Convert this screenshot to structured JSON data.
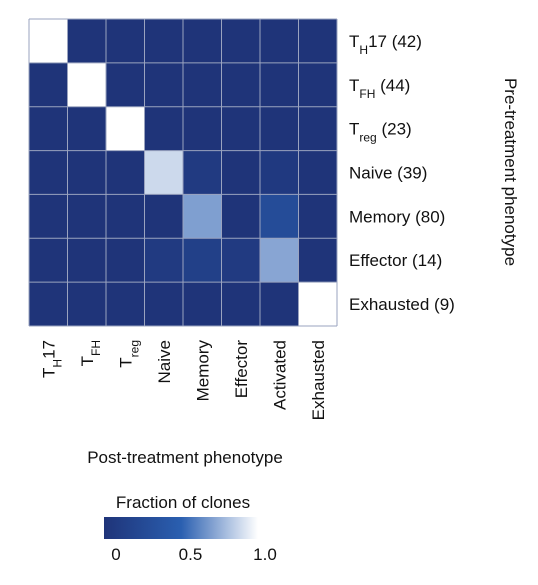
{
  "chart_data": {
    "type": "heatmap",
    "title": "",
    "xlabel": "Post-treatment phenotype",
    "ylabel": "Pre-treatment phenotype",
    "x_categories": [
      {
        "main": "T",
        "sub": "H",
        "suffix": "17"
      },
      {
        "main": "T",
        "sub": "FH",
        "suffix": ""
      },
      {
        "main": "T",
        "sub": "reg",
        "suffix": ""
      },
      {
        "main": "Naive",
        "sub": "",
        "suffix": ""
      },
      {
        "main": "Memory",
        "sub": "",
        "suffix": ""
      },
      {
        "main": "Effector",
        "sub": "",
        "suffix": ""
      },
      {
        "main": "Activated",
        "sub": "",
        "suffix": ""
      },
      {
        "main": "Exhausted",
        "sub": "",
        "suffix": ""
      }
    ],
    "y_categories": [
      {
        "main": "T",
        "sub": "H",
        "suffix": "17 (42)"
      },
      {
        "main": "T",
        "sub": "FH",
        "suffix": " (44)"
      },
      {
        "main": "T",
        "sub": "reg",
        "suffix": " (23)"
      },
      {
        "main": "Naive (39)",
        "sub": "",
        "suffix": ""
      },
      {
        "main": "Memory (80)",
        "sub": "",
        "suffix": ""
      },
      {
        "main": "Effector (14)",
        "sub": "",
        "suffix": ""
      },
      {
        "main": "Exhausted (9)",
        "sub": "",
        "suffix": ""
      }
    ],
    "values": [
      [
        1.0,
        0,
        0,
        0,
        0,
        0,
        0,
        0
      ],
      [
        0,
        1.0,
        0,
        0,
        0,
        0,
        0,
        0
      ],
      [
        0,
        0,
        1.0,
        0,
        0,
        0,
        0,
        0
      ],
      [
        0,
        0,
        0,
        0.88,
        0.07,
        0,
        0.06,
        0
      ],
      [
        0,
        0,
        0,
        0,
        0.7,
        0,
        0.28,
        0
      ],
      [
        0,
        0,
        0,
        0.07,
        0.14,
        0.07,
        0.72,
        0
      ],
      [
        0,
        0,
        0,
        0,
        0,
        0,
        0,
        1.0
      ]
    ],
    "colorbar": {
      "title": "Fraction of clones",
      "range": [
        0,
        1.0
      ],
      "ticks": [
        {
          "value": 0,
          "label": "0"
        },
        {
          "value": 0.5,
          "label": "0.5"
        },
        {
          "value": 1.0,
          "label": "1.0"
        }
      ],
      "color_low": "#1f3479",
      "color_mid": "#2a5fb0",
      "color_high": "#ffffff"
    },
    "grid": true,
    "grid_color": "#9aa3bf"
  }
}
